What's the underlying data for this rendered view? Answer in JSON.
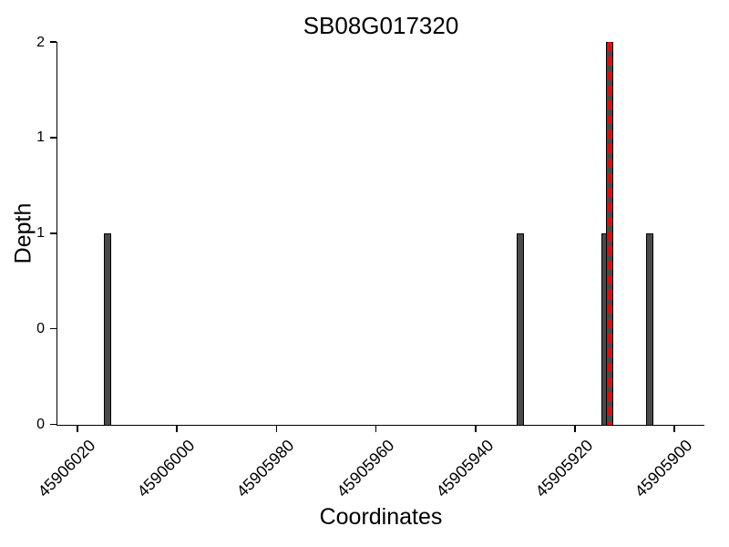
{
  "chart_data": {
    "type": "bar",
    "title": "SB08G017320",
    "xlabel": "Coordinates",
    "ylabel": "Depth",
    "x_axis_reversed": true,
    "xlim": [
      45906024,
      45905894
    ],
    "ylim": [
      0,
      2
    ],
    "grid": false,
    "x_ticks": [
      {
        "value": 45906020,
        "label": "45906020"
      },
      {
        "value": 45906000,
        "label": "45906000"
      },
      {
        "value": 45905980,
        "label": "45905980"
      },
      {
        "value": 45905960,
        "label": "45905960"
      },
      {
        "value": 45905940,
        "label": "45905940"
      },
      {
        "value": 45905920,
        "label": "45905920"
      },
      {
        "value": 45905900,
        "label": "45905900"
      }
    ],
    "y_ticks": [
      {
        "value": 0,
        "label": "0"
      },
      {
        "value": 0.5,
        "label": "0"
      },
      {
        "value": 1,
        "label": "1"
      },
      {
        "value": 1.5,
        "label": "1"
      },
      {
        "value": 2,
        "label": "2"
      }
    ],
    "bars": [
      {
        "coordinate": 45906014,
        "depth": 1
      },
      {
        "coordinate": 45905931,
        "depth": 1
      },
      {
        "coordinate": 45905914,
        "depth": 1
      },
      {
        "coordinate": 45905913,
        "depth": 2
      },
      {
        "coordinate": 45905905,
        "depth": 1
      }
    ],
    "marker_line": {
      "coordinate": 45905913,
      "style": "dashed",
      "color": "#ff0000"
    },
    "colors": {
      "bar_fill": "#4a4a4a",
      "bar_border": "#000000",
      "axis": "#000000",
      "background": "#ffffff",
      "marker": "#ff0000"
    }
  }
}
